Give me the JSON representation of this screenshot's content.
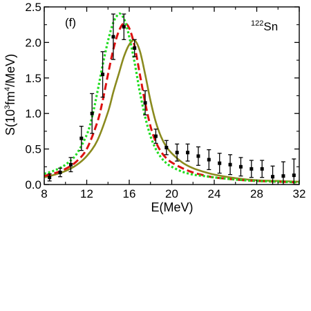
{
  "chart_data": {
    "type": "line",
    "panel_label": "(f)",
    "annotation": {
      "mass": "122",
      "element": "Sn"
    },
    "xlabel": "E(MeV)",
    "ylabel": {
      "prefix": "S(10",
      "exp1": "3",
      "mid": "fm",
      "exp2": "4",
      "suffix": "/MeV)"
    },
    "xlim": [
      8,
      32
    ],
    "ylim": [
      0,
      2.5
    ],
    "x_ticks": [
      8,
      12,
      16,
      20,
      24,
      28,
      32
    ],
    "x_tick_labels": [
      "8",
      "12",
      "16",
      "20",
      "24",
      "28",
      "32"
    ],
    "y_ticks": [
      0,
      0.5,
      1.0,
      1.5,
      2.0,
      2.5
    ],
    "y_tick_labels": [
      "0.0",
      "0.5",
      "1.0",
      "1.5",
      "2.0",
      "2.5"
    ],
    "series": [
      {
        "style": "dotted",
        "color": "#22dd22",
        "x": [
          8,
          9,
          10,
          11,
          12,
          12.5,
          13,
          13.5,
          14,
          14.5,
          15,
          15.3,
          15.6,
          16,
          16.5,
          17,
          17.5,
          18,
          18.5,
          19,
          19.5,
          20,
          21,
          22,
          23,
          24,
          26,
          28,
          30,
          32
        ],
        "y": [
          0.15,
          0.2,
          0.28,
          0.42,
          0.7,
          0.95,
          1.3,
          1.68,
          2.02,
          2.28,
          2.4,
          2.38,
          2.3,
          2.08,
          1.72,
          1.3,
          0.95,
          0.68,
          0.5,
          0.38,
          0.3,
          0.25,
          0.18,
          0.14,
          0.12,
          0.1,
          0.07,
          0.05,
          0.04,
          0.03
        ]
      },
      {
        "style": "dashed",
        "color": "#dd1111",
        "x": [
          8,
          9,
          10,
          11,
          12,
          13,
          13.5,
          14,
          14.5,
          15,
          15.5,
          16,
          16.5,
          17,
          17.5,
          18,
          18.5,
          19,
          19.5,
          20,
          21,
          22,
          23,
          24,
          26,
          28,
          30,
          32
        ],
        "y": [
          0.12,
          0.16,
          0.22,
          0.32,
          0.5,
          0.88,
          1.18,
          1.55,
          1.9,
          2.15,
          2.27,
          2.2,
          1.95,
          1.55,
          1.15,
          0.82,
          0.6,
          0.46,
          0.37,
          0.31,
          0.23,
          0.17,
          0.13,
          0.1,
          0.07,
          0.05,
          0.04,
          0.03
        ]
      },
      {
        "style": "solid",
        "color": "#8a8a1e",
        "x": [
          8,
          9,
          10,
          11,
          12,
          13,
          14,
          14.5,
          15,
          15.5,
          16,
          16.5,
          17,
          17.5,
          18,
          18.5,
          19,
          19.5,
          20,
          21,
          22,
          23,
          24,
          26,
          28,
          30,
          32
        ],
        "y": [
          0.1,
          0.14,
          0.19,
          0.27,
          0.4,
          0.62,
          1.02,
          1.3,
          1.55,
          1.8,
          1.97,
          2.03,
          1.88,
          1.55,
          1.18,
          0.88,
          0.67,
          0.53,
          0.44,
          0.31,
          0.23,
          0.18,
          0.14,
          0.09,
          0.06,
          0.05,
          0.04
        ]
      }
    ],
    "experimental_points": {
      "marker": "square",
      "color": "#000000",
      "x": [
        8.5,
        9.5,
        10.5,
        11.5,
        12.5,
        13.5,
        14.5,
        15.5,
        16.5,
        17.5,
        18.5,
        19.5,
        20.5,
        21.5,
        22.5,
        23.5,
        24.5,
        25.5,
        26.5,
        27.5,
        28.5,
        29.5,
        30.5,
        31.5
      ],
      "y": [
        0.1,
        0.17,
        0.28,
        0.65,
        1.0,
        1.55,
        2.08,
        2.22,
        1.92,
        1.15,
        0.68,
        0.52,
        0.45,
        0.45,
        0.4,
        0.35,
        0.3,
        0.28,
        0.25,
        0.22,
        0.22,
        0.11,
        0.12,
        0.13
      ],
      "err": [
        0.05,
        0.06,
        0.1,
        0.17,
        0.28,
        0.32,
        0.32,
        0.18,
        0.12,
        0.17,
        0.1,
        0.1,
        0.12,
        0.12,
        0.13,
        0.14,
        0.14,
        0.14,
        0.13,
        0.12,
        0.12,
        0.15,
        0.2,
        0.23
      ]
    },
    "grid": false,
    "legend": "none"
  }
}
